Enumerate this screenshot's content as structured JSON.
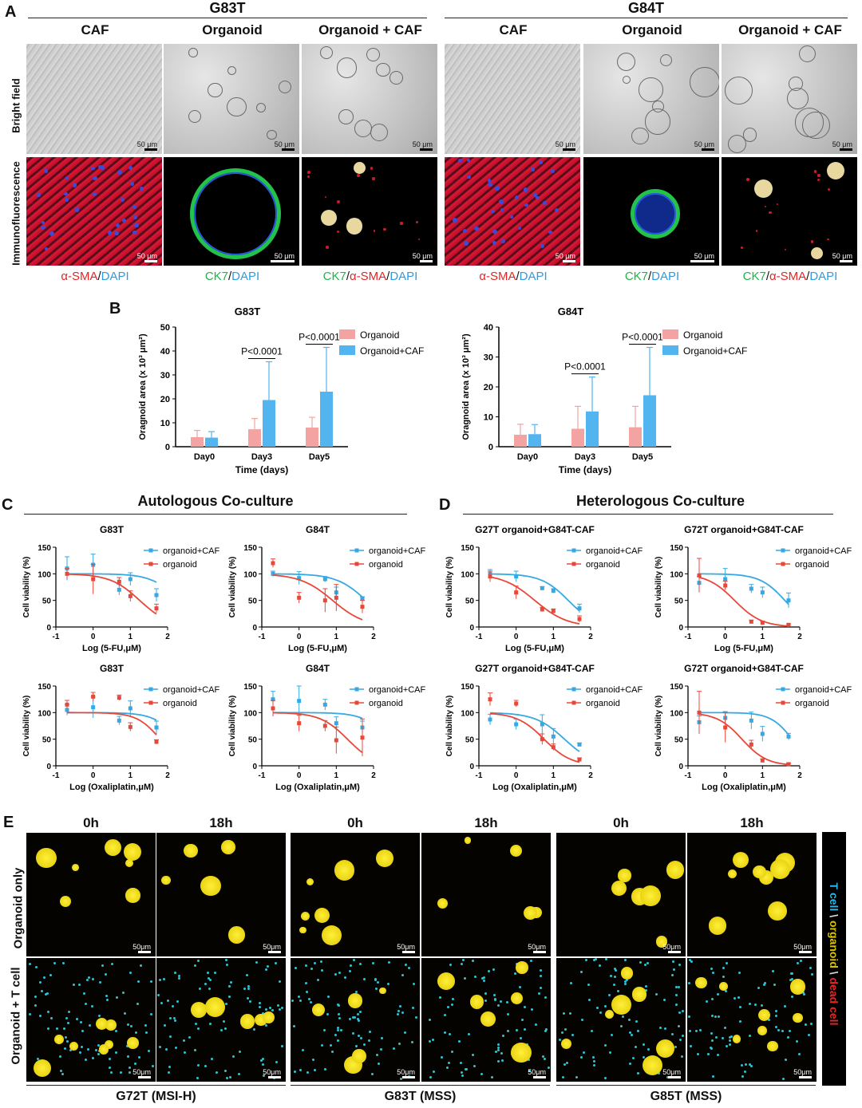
{
  "panelA": {
    "letter": "A",
    "groups": [
      "G83T",
      "G84T"
    ],
    "columns": [
      "CAF",
      "Organoid",
      "Organoid + CAF",
      "CAF",
      "Organoid",
      "Organoid + CAF"
    ],
    "rows": [
      "Bright field",
      "Immunofluorescence"
    ],
    "scale": "50 μm",
    "captions": [
      [
        {
          "t": "α-SMA",
          "c": "red"
        },
        {
          "t": "/",
          "c": "k"
        },
        {
          "t": "DAPI",
          "c": "blue"
        }
      ],
      [
        {
          "t": "CK7",
          "c": "green"
        },
        {
          "t": "/",
          "c": "k"
        },
        {
          "t": "DAPI",
          "c": "blue"
        }
      ],
      [
        {
          "t": "CK7",
          "c": "green"
        },
        {
          "t": "/",
          "c": "k"
        },
        {
          "t": "α-SMA",
          "c": "red"
        },
        {
          "t": "/",
          "c": "k"
        },
        {
          "t": "DAPI",
          "c": "blue"
        }
      ],
      [
        {
          "t": "α-SMA",
          "c": "red"
        },
        {
          "t": "/",
          "c": "k"
        },
        {
          "t": "DAPI",
          "c": "blue"
        }
      ],
      [
        {
          "t": "CK7",
          "c": "green"
        },
        {
          "t": "/",
          "c": "k"
        },
        {
          "t": "DAPI",
          "c": "blue"
        }
      ],
      [
        {
          "t": "CK7",
          "c": "green"
        },
        {
          "t": "/",
          "c": "k"
        },
        {
          "t": "α-SMA",
          "c": "red"
        },
        {
          "t": "/",
          "c": "k"
        },
        {
          "t": "DAPI",
          "c": "blue"
        }
      ]
    ]
  },
  "panelB": {
    "letter": "B"
  },
  "panelC": {
    "letter": "C",
    "title": "Autologous Co-culture"
  },
  "panelD": {
    "letter": "D",
    "title": "Heterologous Co-culture"
  },
  "panelE": {
    "letter": "E",
    "timepoints": [
      "0h",
      "18h",
      "0h",
      "18h",
      "0h",
      "18h"
    ],
    "rows": [
      "Organoid only",
      "Organoid + T cell"
    ],
    "scale": "50μm",
    "samples": [
      "G72T (MSI-H)",
      "G83T (MSS)",
      "G85T (MSS)"
    ],
    "legend": [
      {
        "t": "T cell",
        "c": "cyan"
      },
      {
        "t": " \\ ",
        "c": "k"
      },
      {
        "t": "organoid",
        "c": "yellow"
      },
      {
        "t": " \\ ",
        "c": "k"
      },
      {
        "t": "dead cell",
        "c": "red"
      }
    ]
  },
  "colors": {
    "organoid_bar": "#f4a3a3",
    "caf_bar": "#52b5f0",
    "organoid_line": "#e8483a",
    "caf_line": "#35a9e3"
  },
  "chart_data": [
    {
      "id": "B1",
      "type": "bar",
      "title": "G83T",
      "xlabel": "Time (days)",
      "ylabel": "Oragnoid area (x 10³ μm²)",
      "categories": [
        "Day0",
        "Day3",
        "Day5"
      ],
      "ylim": [
        0,
        50
      ],
      "yticks": [
        0,
        10,
        20,
        30,
        40,
        50
      ],
      "series": [
        {
          "name": "Organoid",
          "values": [
            4,
            7.3,
            8
          ],
          "err": [
            2.8,
            4.5,
            4.3
          ]
        },
        {
          "name": "Organoid+CAF",
          "values": [
            3.8,
            19.5,
            23
          ],
          "err": [
            2.5,
            16,
            18.5
          ]
        }
      ],
      "annotations": [
        "P<0.0001",
        "P<0.0001"
      ]
    },
    {
      "id": "B2",
      "type": "bar",
      "title": "G84T",
      "xlabel": "Time (days)",
      "ylabel": "Oragnoid area (x 10³ μm²)",
      "categories": [
        "Day0",
        "Day3",
        "Day5"
      ],
      "ylim": [
        0,
        40
      ],
      "yticks": [
        0,
        10,
        20,
        30,
        40
      ],
      "series": [
        {
          "name": "Organoid",
          "values": [
            4,
            6,
            6.5
          ],
          "err": [
            3.5,
            7.5,
            7
          ]
        },
        {
          "name": "Organoid+CAF",
          "values": [
            4.2,
            11.8,
            17.2
          ],
          "err": [
            3.2,
            11.5,
            16
          ]
        }
      ],
      "annotations": [
        "P<0.0001",
        "P<0.0001"
      ]
    },
    {
      "id": "C1",
      "type": "scatter",
      "title": "G83T",
      "xlabel": "Log (5-FU,μM)",
      "ylabel": "Cell viability (%)",
      "xlim": [
        -1,
        2
      ],
      "ylim": [
        0,
        150
      ],
      "xticks": [
        -1,
        0,
        1,
        2
      ],
      "yticks": [
        0,
        50,
        100,
        150
      ],
      "series": [
        {
          "name": "organoid+CAF",
          "x": [
            -0.7,
            0,
            0.7,
            1,
            1.7
          ],
          "y": [
            110,
            117,
            70,
            90,
            60
          ],
          "err": [
            22,
            20,
            10,
            12,
            12
          ],
          "fit": {
            "top": 100,
            "bottom": 0,
            "ic50": 2.3,
            "hill": 1.2
          }
        },
        {
          "name": "organoid",
          "x": [
            -0.7,
            0,
            0.7,
            1,
            1.7
          ],
          "y": [
            100,
            90,
            85,
            58,
            35
          ],
          "err": [
            10,
            28,
            8,
            10,
            8
          ],
          "fit": {
            "top": 100,
            "bottom": 0,
            "ic50": 1.25,
            "hill": 1.1
          }
        }
      ]
    },
    {
      "id": "C2",
      "type": "scatter",
      "title": "G84T",
      "xlabel": "Log (5-FU,μM)",
      "ylabel": "Cell viability (%)",
      "xlim": [
        -1,
        2
      ],
      "ylim": [
        0,
        150
      ],
      "xticks": [
        -1,
        0,
        1,
        2
      ],
      "yticks": [
        0,
        50,
        100,
        150
      ],
      "series": [
        {
          "name": "organoid+CAF",
          "x": [
            -0.7,
            0,
            0.7,
            1,
            1.7
          ],
          "y": [
            100,
            92,
            90,
            65,
            53
          ],
          "err": [
            5,
            12,
            5,
            10,
            4
          ],
          "fit": {
            "top": 100,
            "bottom": 0,
            "ic50": 1.8,
            "hill": 1.1
          }
        },
        {
          "name": "organoid",
          "x": [
            -0.7,
            0,
            0.7,
            1,
            1.7
          ],
          "y": [
            120,
            55,
            50,
            55,
            38
          ],
          "err": [
            8,
            10,
            22,
            25,
            12
          ],
          "fit": {
            "top": 100,
            "bottom": 0,
            "ic50": 0.9,
            "hill": 1.0
          }
        }
      ]
    },
    {
      "id": "C3",
      "type": "scatter",
      "title": "G83T",
      "xlabel": "Log (Oxaliplatin,μM)",
      "ylabel": "Cell viability (%)",
      "xlim": [
        -1,
        2
      ],
      "ylim": [
        0,
        150
      ],
      "xticks": [
        -1,
        0,
        1,
        2
      ],
      "yticks": [
        0,
        50,
        100,
        150
      ],
      "series": [
        {
          "name": "organoid+CAF",
          "x": [
            -0.7,
            0,
            0.7,
            1,
            1.7
          ],
          "y": [
            105,
            110,
            85,
            108,
            72
          ],
          "err": [
            10,
            20,
            8,
            14,
            12
          ],
          "fit": {
            "top": 100,
            "bottom": 0,
            "ic50": 2.3,
            "hill": 1.3
          }
        },
        {
          "name": "organoid",
          "x": [
            -0.7,
            0,
            0.7,
            1,
            1.7
          ],
          "y": [
            115,
            130,
            128,
            73,
            45
          ],
          "err": [
            8,
            8,
            5,
            8,
            4
          ],
          "fit": {
            "top": 100,
            "bottom": 0,
            "ic50": 1.8,
            "hill": 1.4
          }
        }
      ]
    },
    {
      "id": "C4",
      "type": "scatter",
      "title": "G84T",
      "xlabel": "Log (Oxaliplatin,μM)",
      "ylabel": "Cell viability (%)",
      "xlim": [
        -1,
        2
      ],
      "ylim": [
        0,
        150
      ],
      "xticks": [
        -1,
        0,
        1,
        2
      ],
      "yticks": [
        0,
        50,
        100,
        150
      ],
      "series": [
        {
          "name": "organoid+CAF",
          "x": [
            -0.7,
            0,
            0.7,
            1,
            1.7
          ],
          "y": [
            125,
            122,
            115,
            80,
            72
          ],
          "err": [
            15,
            28,
            10,
            12,
            12
          ],
          "fit": {
            "top": 100,
            "bottom": 0,
            "ic50": 2.4,
            "hill": 1.3
          }
        },
        {
          "name": "organoid",
          "x": [
            -0.7,
            0,
            0.7,
            1,
            1.7
          ],
          "y": [
            108,
            80,
            75,
            48,
            53
          ],
          "err": [
            15,
            15,
            10,
            25,
            35
          ],
          "fit": {
            "top": 100,
            "bottom": 0,
            "ic50": 1.3,
            "hill": 1.2
          }
        }
      ]
    },
    {
      "id": "D1",
      "type": "scatter",
      "title": "G27T organoid+G84T-CAF",
      "xlabel": "Log (5-FU,μM)",
      "ylabel": "Cell viability (%)",
      "xlim": [
        -1,
        2
      ],
      "ylim": [
        0,
        150
      ],
      "xticks": [
        -1,
        0,
        1,
        2
      ],
      "yticks": [
        0,
        50,
        100,
        150
      ],
      "series": [
        {
          "name": "organoid+CAF",
          "x": [
            -0.7,
            0,
            0.7,
            1,
            1.7
          ],
          "y": [
            100,
            95,
            73,
            68,
            35
          ],
          "err": [
            8,
            10,
            3,
            4,
            8
          ],
          "fit": {
            "top": 100,
            "bottom": 0,
            "ic50": 1.4,
            "hill": 1.2
          }
        },
        {
          "name": "organoid",
          "x": [
            -0.7,
            0,
            0.7,
            1,
            1.7
          ],
          "y": [
            95,
            65,
            33,
            30,
            15
          ],
          "err": [
            10,
            12,
            4,
            4,
            6
          ],
          "fit": {
            "top": 100,
            "bottom": 0,
            "ic50": 0.5,
            "hill": 1.0
          }
        }
      ]
    },
    {
      "id": "D2",
      "type": "scatter",
      "title": "G72T organoid+G84T-CAF",
      "xlabel": "Log (5-FU,μM)",
      "ylabel": "Cell viability (%)",
      "xlim": [
        -1,
        2
      ],
      "ylim": [
        0,
        150
      ],
      "xticks": [
        -1,
        0,
        1,
        2
      ],
      "yticks": [
        0,
        50,
        100,
        150
      ],
      "series": [
        {
          "name": "organoid+CAF",
          "x": [
            -0.7,
            0,
            0.7,
            1,
            1.7
          ],
          "y": [
            83,
            90,
            72,
            65,
            50
          ],
          "err": [
            12,
            20,
            8,
            10,
            14
          ],
          "fit": {
            "top": 100,
            "bottom": 0,
            "ic50": 1.6,
            "hill": 1.3
          }
        },
        {
          "name": "organoid",
          "x": [
            -0.7,
            0,
            0.7,
            1,
            1.7
          ],
          "y": [
            97,
            78,
            10,
            8,
            4
          ],
          "err": [
            32,
            8,
            3,
            3,
            2
          ],
          "fit": {
            "top": 100,
            "bottom": 0,
            "ic50": 0.25,
            "hill": 1.2
          }
        }
      ]
    },
    {
      "id": "D3",
      "type": "scatter",
      "title": "G27T organoid+G84T-CAF",
      "xlabel": "Log (Oxaliplatin,μM)",
      "ylabel": "Cell viability (%)",
      "xlim": [
        -1,
        2
      ],
      "ylim": [
        0,
        150
      ],
      "xticks": [
        -1,
        0,
        1,
        2
      ],
      "yticks": [
        0,
        50,
        100,
        150
      ],
      "series": [
        {
          "name": "organoid+CAF",
          "x": [
            -0.7,
            0,
            0.7,
            1,
            1.7
          ],
          "y": [
            87,
            78,
            78,
            55,
            40
          ],
          "err": [
            10,
            10,
            18,
            15,
            3
          ],
          "fit": {
            "top": 100,
            "bottom": 0,
            "ic50": 1.3,
            "hill": 1.1
          }
        },
        {
          "name": "organoid",
          "x": [
            -0.7,
            0,
            0.7,
            1,
            1.7
          ],
          "y": [
            125,
            117,
            50,
            35,
            12
          ],
          "err": [
            12,
            6,
            10,
            6,
            3
          ],
          "fit": {
            "top": 100,
            "bottom": 0,
            "ic50": 0.75,
            "hill": 1.2
          }
        }
      ]
    },
    {
      "id": "D4",
      "type": "scatter",
      "title": "G72T organoid+G84T-CAF",
      "xlabel": "Log (Oxaliplatin,μM)",
      "ylabel": "Cell viability (%)",
      "xlim": [
        -1,
        2
      ],
      "ylim": [
        0,
        150
      ],
      "xticks": [
        -1,
        0,
        1,
        2
      ],
      "yticks": [
        0,
        50,
        100,
        150
      ],
      "series": [
        {
          "name": "organoid+CAF",
          "x": [
            -0.7,
            0,
            0.7,
            1,
            1.7
          ],
          "y": [
            82,
            90,
            85,
            60,
            55
          ],
          "err": [
            12,
            12,
            16,
            14,
            6
          ],
          "fit": {
            "top": 100,
            "bottom": 0,
            "ic50": 1.8,
            "hill": 1.5
          }
        },
        {
          "name": "organoid",
          "x": [
            -0.7,
            0,
            0.7,
            1,
            1.7
          ],
          "y": [
            100,
            72,
            40,
            10,
            3
          ],
          "err": [
            40,
            28,
            8,
            3,
            2
          ],
          "fit": {
            "top": 100,
            "bottom": 0,
            "ic50": 0.45,
            "hill": 1.3
          }
        }
      ]
    }
  ]
}
